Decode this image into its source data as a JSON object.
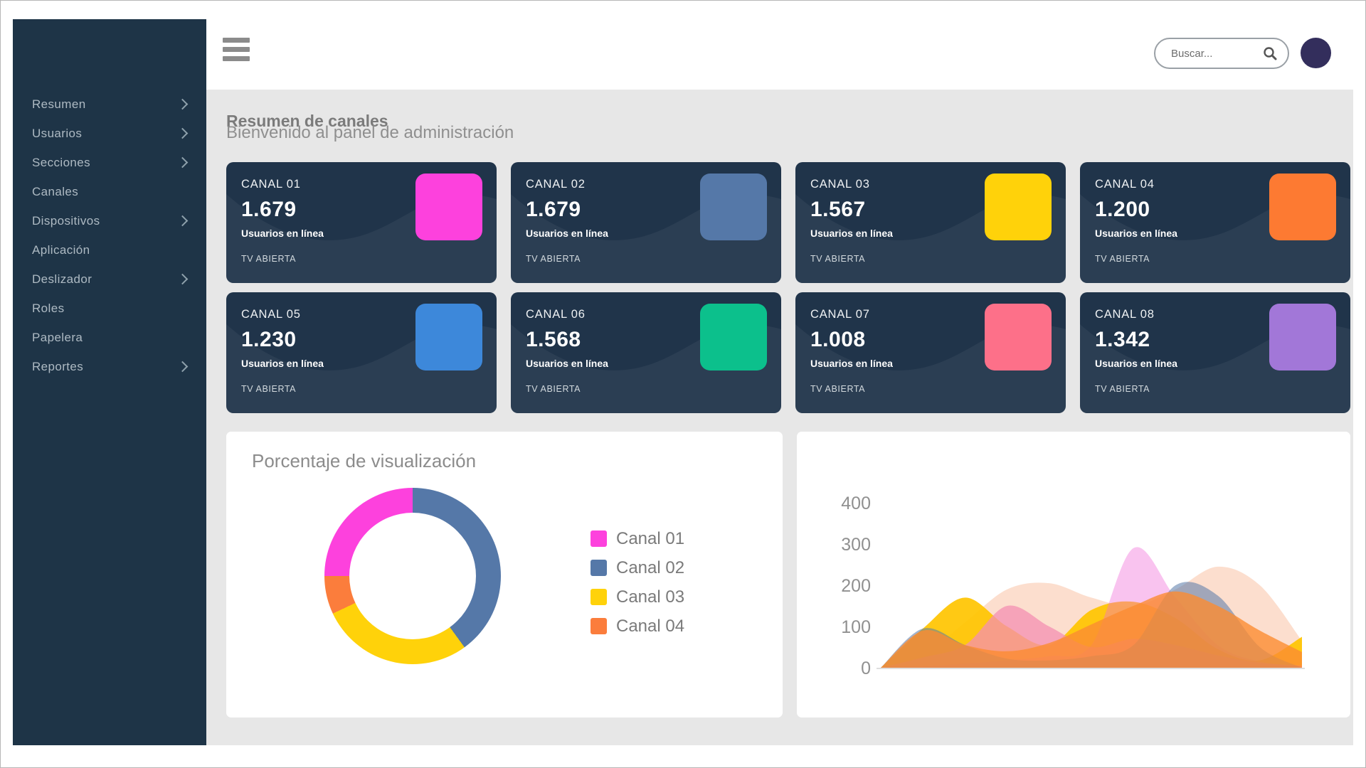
{
  "header": {
    "search_placeholder": "Buscar..."
  },
  "sidebar": {
    "bg_color": "#1e3447",
    "items": [
      {
        "label": "Resumen",
        "has_submenu": true
      },
      {
        "label": "Usuarios",
        "has_submenu": true
      },
      {
        "label": "Secciones",
        "has_submenu": true
      },
      {
        "label": "Canales",
        "has_submenu": false
      },
      {
        "label": "Dispositivos",
        "has_submenu": true
      },
      {
        "label": "Aplicación",
        "has_submenu": false
      },
      {
        "label": "Deslizador",
        "has_submenu": true
      },
      {
        "label": "Roles",
        "has_submenu": false
      },
      {
        "label": "Papelera",
        "has_submenu": false
      },
      {
        "label": "Reportes",
        "has_submenu": true
      }
    ]
  },
  "main": {
    "title": "Resumen de canales",
    "subtitle": "Bienvenido al panel de administración"
  },
  "channel_cards": [
    {
      "label": "CANAL 01",
      "value": "1.679",
      "caption": "Usuarios en línea",
      "tag": "TV ABIERTA",
      "color": "#fd41dd"
    },
    {
      "label": "CANAL 02",
      "value": "1.679",
      "caption": "Usuarios en línea",
      "tag": "TV ABIERTA",
      "color": "#5578a8"
    },
    {
      "label": "CANAL 03",
      "value": "1.567",
      "caption": "Usuarios en línea",
      "tag": "TV ABIERTA",
      "color": "#ffd20a"
    },
    {
      "label": "CANAL 04",
      "value": "1.200",
      "caption": "Usuarios en línea",
      "tag": "TV ABIERTA",
      "color": "#fd7a32"
    },
    {
      "label": "CANAL 05",
      "value": "1.230",
      "caption": "Usuarios en línea",
      "tag": "TV ABIERTA",
      "color": "#3d88da"
    },
    {
      "label": "CANAL 06",
      "value": "1.568",
      "caption": "Usuarios en línea",
      "tag": "TV ABIERTA",
      "color": "#0cc08c"
    },
    {
      "label": "CANAL 07",
      "value": "1.008",
      "caption": "Usuarios en línea",
      "tag": "TV ABIERTA",
      "color": "#fd7089"
    },
    {
      "label": "CANAL 08",
      "value": "1.342",
      "caption": "Usuarios en línea",
      "tag": "TV ABIERTA",
      "color": "#a277d8"
    }
  ],
  "card_style": {
    "bg": "#20344a",
    "wave": "rgba(255,255,255,0.05)"
  },
  "chart_data": [
    {
      "type": "pie",
      "donut": true,
      "title": "Porcentaje de visualización",
      "legend_position": "right",
      "segments": [
        {
          "label": "Canal 01",
          "value": 25,
          "color": "#fd41dd"
        },
        {
          "label": "Canal 02",
          "value": 40,
          "color": "#5578a8"
        },
        {
          "label": "Canal 03",
          "value": 28,
          "color": "#ffd20a"
        },
        {
          "label": "Canal 04",
          "value": 7,
          "color": "#fb7d3c"
        }
      ],
      "draw_order": [
        "Canal 02",
        "Canal 03",
        "Canal 04",
        "Canal 01"
      ],
      "start_angle_deg": 0,
      "direction": "clockwise"
    },
    {
      "type": "area",
      "title": "",
      "x": [
        0,
        1,
        2,
        3,
        4,
        5,
        6,
        7,
        8,
        9,
        10
      ],
      "ylim": [
        0,
        420
      ],
      "yticks": [
        0,
        100,
        200,
        300,
        400
      ],
      "grid": false,
      "legend": false,
      "series": [
        {
          "name": "peach",
          "color": "#f79767",
          "opacity": 0.32,
          "values": [
            0,
            30,
            110,
            190,
            205,
            170,
            150,
            190,
            245,
            200,
            65
          ]
        },
        {
          "name": "yellow",
          "color": "#ffc400",
          "opacity": 0.92,
          "values": [
            0,
            95,
            170,
            100,
            55,
            140,
            160,
            120,
            45,
            18,
            75
          ]
        },
        {
          "name": "pink",
          "color": "#f48fb1",
          "opacity": 0.75,
          "values": [
            0,
            25,
            55,
            150,
            100,
            50,
            70,
            55,
            30,
            12,
            5
          ]
        },
        {
          "name": "magenta",
          "color": "#f06ad8",
          "opacity": 0.4,
          "values": [
            0,
            4,
            10,
            18,
            28,
            55,
            290,
            170,
            55,
            15,
            4
          ]
        },
        {
          "name": "slate-blue",
          "color": "#5578a8",
          "opacity": 0.55,
          "values": [
            0,
            95,
            55,
            22,
            18,
            28,
            55,
            200,
            175,
            50,
            0
          ]
        },
        {
          "name": "orange",
          "color": "#fb8c32",
          "opacity": 0.8,
          "values": [
            0,
            90,
            55,
            40,
            60,
            105,
            150,
            185,
            150,
            90,
            38
          ]
        }
      ]
    }
  ]
}
